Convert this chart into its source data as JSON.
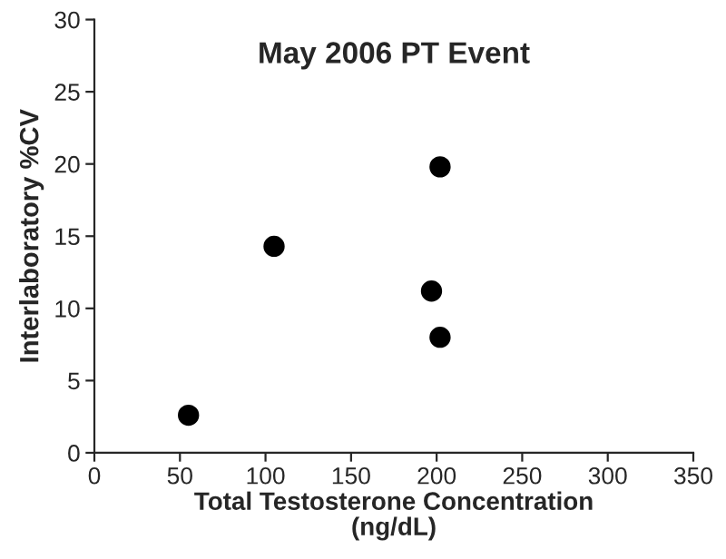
{
  "chart_data": {
    "type": "scatter",
    "title": "May 2006 PT Event",
    "xlabel": "Total Testosterone Concentration\n(ng/dL)",
    "ylabel": "Interlaboratory %CV",
    "x": [
      55,
      105,
      197,
      202,
      202
    ],
    "series": [
      {
        "color": "#000000",
        "values": [
          2.6,
          14.3,
          11.2,
          19.8,
          8.0
        ]
      }
    ],
    "xlim": [
      0,
      350
    ],
    "xticks": [
      0,
      50,
      100,
      150,
      200,
      250,
      300,
      350
    ],
    "ylim": [
      0,
      30
    ],
    "yticks": [
      0,
      5,
      10,
      15,
      20,
      25,
      30
    ],
    "grid": false,
    "legend": false,
    "marker": "circle"
  }
}
